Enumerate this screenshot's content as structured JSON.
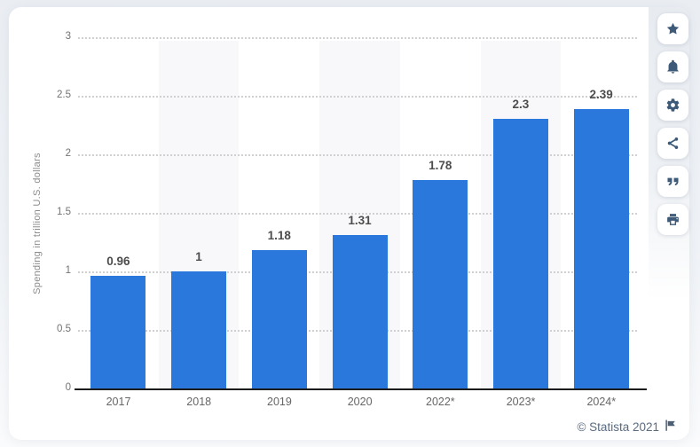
{
  "chart_data": {
    "type": "bar",
    "categories": [
      "2017",
      "2018",
      "2019",
      "2020",
      "2022*",
      "2023*",
      "2024*"
    ],
    "values": [
      0.96,
      1,
      1.18,
      1.31,
      1.78,
      2.3,
      2.39
    ],
    "value_labels": [
      "0.96",
      "1",
      "1.18",
      "1.31",
      "1.78",
      "2.3",
      "2.39"
    ],
    "title": "",
    "xlabel": "",
    "ylabel": "Spending in trillion U.S. dollars",
    "ylim": [
      0,
      3
    ],
    "yticks": [
      0,
      0.5,
      1,
      1.5,
      2,
      2.5,
      3
    ],
    "grid": "horizontal-dotted",
    "legend": "none",
    "bar_color": "#2b78dc",
    "alt_band_color": "#f8f8fa"
  },
  "toolbar": {
    "items": [
      {
        "icon": "star-icon"
      },
      {
        "icon": "bell-icon"
      },
      {
        "icon": "gear-icon"
      },
      {
        "icon": "share-icon"
      },
      {
        "icon": "quote-icon"
      },
      {
        "icon": "print-icon"
      }
    ]
  },
  "footer": {
    "credit": "© Statista 2021",
    "flag_icon": "flag-icon"
  },
  "colors": {
    "bar": "#2b78dc",
    "icon": "#3d5a79",
    "credit_text": "#5a6b80",
    "axis_line": "#1c1c1c",
    "grid_dots": "#d0d0d0",
    "tick_text": "#737373",
    "value_text": "#4d4d4d",
    "band": "#f8f8fa"
  }
}
